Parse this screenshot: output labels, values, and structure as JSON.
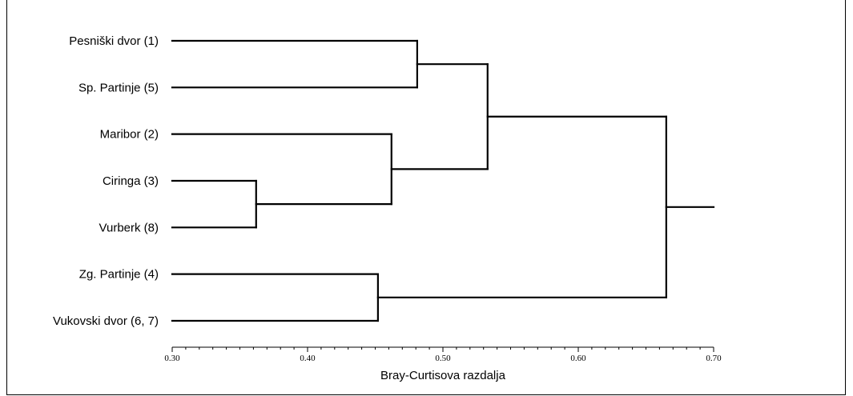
{
  "chart_data": {
    "type": "dendrogram",
    "xlabel": "Bray-Curtisova razdalja",
    "xlim": [
      0.3,
      0.7
    ],
    "tick_labels": [
      "0.30",
      "0.40",
      "0.50",
      "0.60",
      "0.70"
    ],
    "ticks": [
      0.3,
      0.4,
      0.5,
      0.6,
      0.7
    ],
    "minor_tick_step": 0.01,
    "leaves": [
      "Pesniški dvor (1)",
      "Sp. Partinje (5)",
      "Maribor (2)",
      "Ciringa (3)",
      "Vurberk (8)",
      "Zg. Partinje (4)",
      "Vukovski dvor (6, 7)"
    ],
    "merges": [
      {
        "id": "A",
        "children": [
          "L3",
          "L4"
        ],
        "height": 0.362
      },
      {
        "id": "B",
        "children": [
          "L5",
          "L6"
        ],
        "height": 0.452
      },
      {
        "id": "C",
        "children": [
          "L2",
          "A"
        ],
        "height": 0.462
      },
      {
        "id": "D",
        "children": [
          "L0",
          "L1"
        ],
        "height": 0.481
      },
      {
        "id": "E",
        "children": [
          "D",
          "C"
        ],
        "height": 0.533
      },
      {
        "id": "F",
        "children": [
          "E",
          "B"
        ],
        "height": 0.665
      }
    ],
    "root_tail_to": 0.7,
    "line_color": "#000000"
  }
}
